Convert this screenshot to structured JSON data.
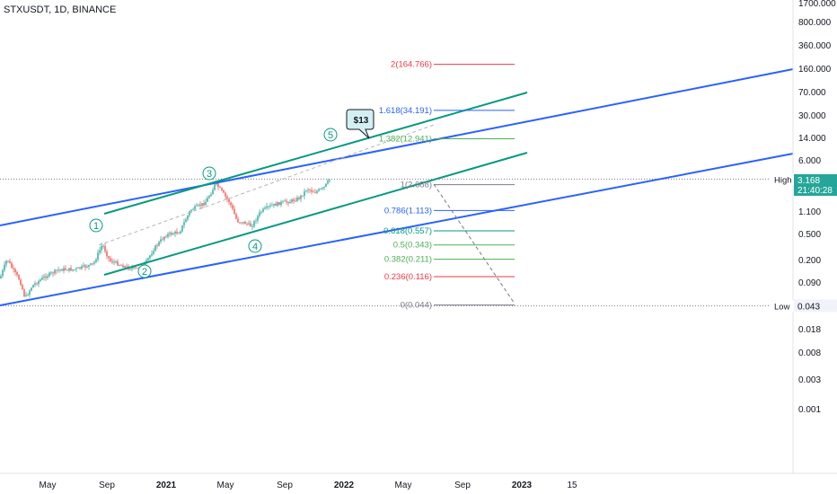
{
  "header": {
    "symbol_label": "STXUSDT, 1D, BINANCE"
  },
  "colors": {
    "blue_channel": "#2962ff",
    "green_channel": "#089981",
    "fib_red": "#f23645",
    "fib_blue": "#2962ff",
    "fib_green": "#4caf50",
    "fib_teal": "#089981",
    "fib_gray": "#787b86",
    "price_badge": "#26a69a",
    "callout_bg": "#d4eff2"
  },
  "chart_data": {
    "type": "line",
    "price_axis": {
      "scale": "log",
      "tick_labels": [
        "1700.000",
        "800.000",
        "360.000",
        "160.000",
        "70.000",
        "30.000",
        "14.000",
        "6.000",
        "3.168",
        "1.100",
        "0.500",
        "0.200",
        "0.090",
        "0.043",
        "0.018",
        "0.008",
        "0.003",
        "0.001"
      ]
    },
    "time_axis": {
      "tick_labels": [
        "May",
        "Sep",
        "2021",
        "May",
        "Sep",
        "2022",
        "May",
        "Sep",
        "2023",
        "15"
      ]
    },
    "high": {
      "label": "High",
      "value": "3.256"
    },
    "low": {
      "label": "Low",
      "value": "0.043"
    },
    "last_price": {
      "value": "3.168",
      "countdown": "21:40:28"
    },
    "fib_levels": [
      {
        "label": "2(164.766)",
        "ratio": 2,
        "value": 164.766
      },
      {
        "label": "1.618(34.191)",
        "ratio": 1.618,
        "value": 34.191
      },
      {
        "label": "1.382(12.941)",
        "ratio": 1.382,
        "value": 12.941
      },
      {
        "label": "1(2.688)",
        "ratio": 1,
        "value": 2.688
      },
      {
        "label": "0.786(1.113)",
        "ratio": 0.786,
        "value": 1.113
      },
      {
        "label": "0.618(0.557)",
        "ratio": 0.618,
        "value": 0.557
      },
      {
        "label": "0.5(0.343)",
        "ratio": 0.5,
        "value": 0.343
      },
      {
        "label": "0.382(0.211)",
        "ratio": 0.382,
        "value": 0.211
      },
      {
        "label": "0.236(0.116)",
        "ratio": 0.236,
        "value": 0.116
      },
      {
        "label": "0(0.044)",
        "ratio": 0,
        "value": 0.044
      }
    ],
    "wave_labels": [
      "1",
      "2",
      "3",
      "4",
      "5"
    ],
    "annotations": [
      {
        "text": "$13"
      }
    ],
    "grid": false,
    "legend": "none"
  }
}
